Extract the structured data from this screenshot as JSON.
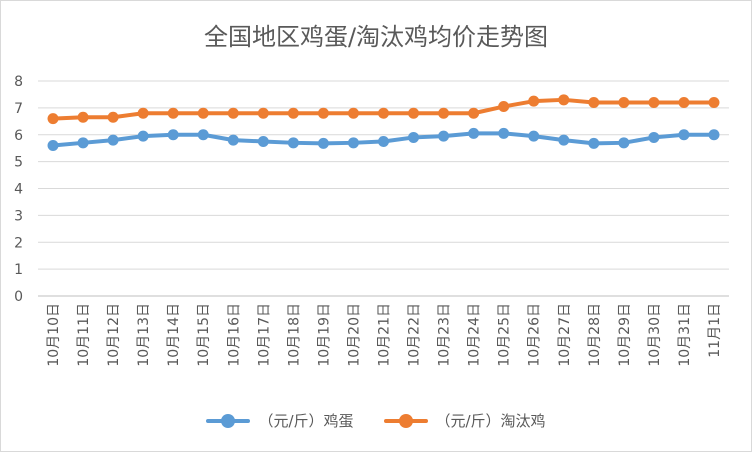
{
  "chart_data": {
    "type": "line",
    "title": "全国地区鸡蛋/淘汰鸡均价走势图",
    "xlabel": "",
    "ylabel": "",
    "ylim": [
      0,
      8
    ],
    "yticks": [
      0,
      1,
      2,
      3,
      4,
      5,
      6,
      7,
      8
    ],
    "grid": true,
    "legend_position": "bottom",
    "categories": [
      "10月10日",
      "10月11日",
      "10月12日",
      "10月13日",
      "10月14日",
      "10月15日",
      "10月16日",
      "10月17日",
      "10月18日",
      "10月19日",
      "10月20日",
      "10月21日",
      "10月22日",
      "10月23日",
      "10月24日",
      "10月25日",
      "10月26日",
      "10月27日",
      "10月28日",
      "10月29日",
      "10月30日",
      "10月31日",
      "11月1日"
    ],
    "series": [
      {
        "name": "（元/斤）鸡蛋",
        "color": "#5b9bd5",
        "values": [
          5.6,
          5.7,
          5.8,
          5.95,
          6.0,
          6.0,
          5.8,
          5.75,
          5.7,
          5.68,
          5.7,
          5.75,
          5.9,
          5.95,
          6.05,
          6.05,
          5.95,
          5.8,
          5.68,
          5.7,
          5.9,
          6.0,
          6.0
        ]
      },
      {
        "name": "（元/斤）淘汰鸡",
        "color": "#ed7d31",
        "values": [
          6.6,
          6.65,
          6.65,
          6.8,
          6.8,
          6.8,
          6.8,
          6.8,
          6.8,
          6.8,
          6.8,
          6.8,
          6.8,
          6.8,
          6.8,
          7.05,
          7.25,
          7.3,
          7.2,
          7.2,
          7.2,
          7.2,
          7.2
        ]
      }
    ]
  }
}
